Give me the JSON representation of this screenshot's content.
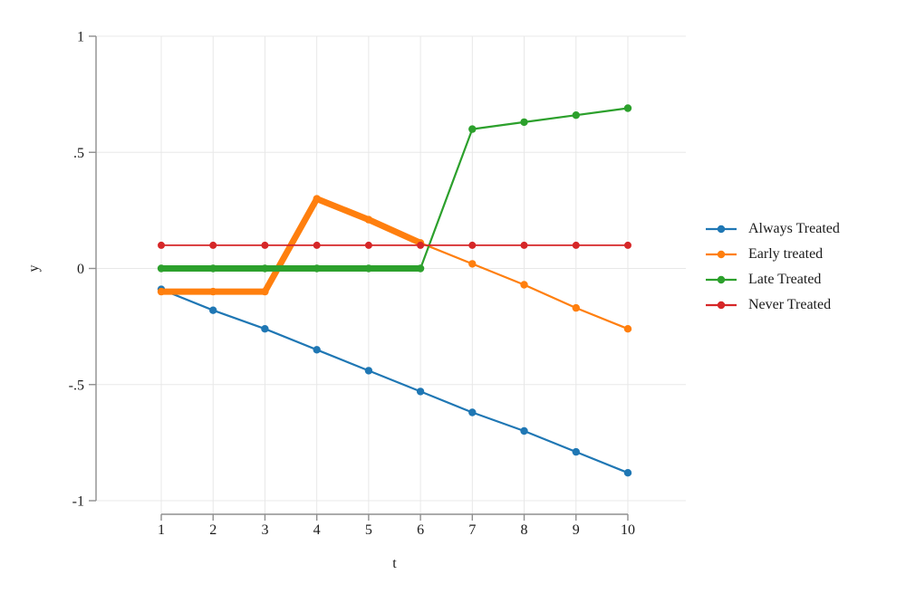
{
  "figure": {
    "background": "#ffffff"
  },
  "axes": {
    "y_title": "y",
    "x_title": "t",
    "x_tick_labels": [
      "1",
      "2",
      "3",
      "4",
      "5",
      "6",
      "7",
      "8",
      "9",
      "10"
    ],
    "y_tick_labels": [
      "1",
      ".5",
      "0",
      "-.5",
      "-1"
    ],
    "axis_color": "#8f8f8f",
    "grid_color": "#e8e8e8",
    "label_color": "#1a1a1a"
  },
  "legend": {
    "position": "outside-right",
    "items": [
      {
        "label": "Always Treated",
        "color": "#1f77b4"
      },
      {
        "label": "Early treated",
        "color": "#ff7f0e"
      },
      {
        "label": "Late Treated",
        "color": "#2ca02c"
      },
      {
        "label": "Never Treated",
        "color": "#d62728"
      }
    ]
  },
  "chart_data": {
    "type": "line",
    "title": "",
    "xlabel": "t",
    "ylabel": "y",
    "x": [
      1,
      2,
      3,
      4,
      5,
      6,
      7,
      8,
      9,
      10
    ],
    "xlim": [
      1,
      10
    ],
    "ylim": [
      -1,
      1
    ],
    "x_ticks": [
      1,
      2,
      3,
      4,
      5,
      6,
      7,
      8,
      9,
      10
    ],
    "y_ticks": [
      1,
      0.5,
      0,
      -0.5,
      -1
    ],
    "y_tick_labels": [
      "1",
      ".5",
      "0",
      "-.5",
      "-1"
    ],
    "grid": true,
    "legend_position": "outside-right",
    "series": [
      {
        "name": "Always Treated",
        "color": "#1f77b4",
        "marker": "circle",
        "line_width": 2.2,
        "marker_radius": 4.2,
        "values": [
          -0.09,
          -0.18,
          -0.26,
          -0.35,
          -0.44,
          -0.53,
          -0.62,
          -0.7,
          -0.79,
          -0.88
        ]
      },
      {
        "name": "Early treated",
        "color": "#ff7f0e",
        "marker": "circle",
        "line_width": 2.2,
        "marker_radius": 4.2,
        "thick_segment": {
          "from_x": 1,
          "to_x": 6,
          "width": 7
        },
        "values": [
          -0.1,
          -0.1,
          -0.1,
          0.3,
          0.21,
          0.11,
          0.02,
          -0.07,
          -0.17,
          -0.26
        ]
      },
      {
        "name": "Late Treated",
        "color": "#2ca02c",
        "marker": "circle",
        "line_width": 2.2,
        "marker_radius": 4.2,
        "thick_segment": {
          "from_x": 1,
          "to_x": 6,
          "width": 7
        },
        "values": [
          0,
          0,
          0,
          0,
          0,
          0,
          0.6,
          0.63,
          0.66,
          0.69
        ]
      },
      {
        "name": "Never Treated",
        "color": "#d62728",
        "marker": "circle",
        "line_width": 1.8,
        "marker_radius": 4.0,
        "values": [
          0.1,
          0.1,
          0.1,
          0.1,
          0.1,
          0.1,
          0.1,
          0.1,
          0.1,
          0.1
        ]
      }
    ]
  }
}
